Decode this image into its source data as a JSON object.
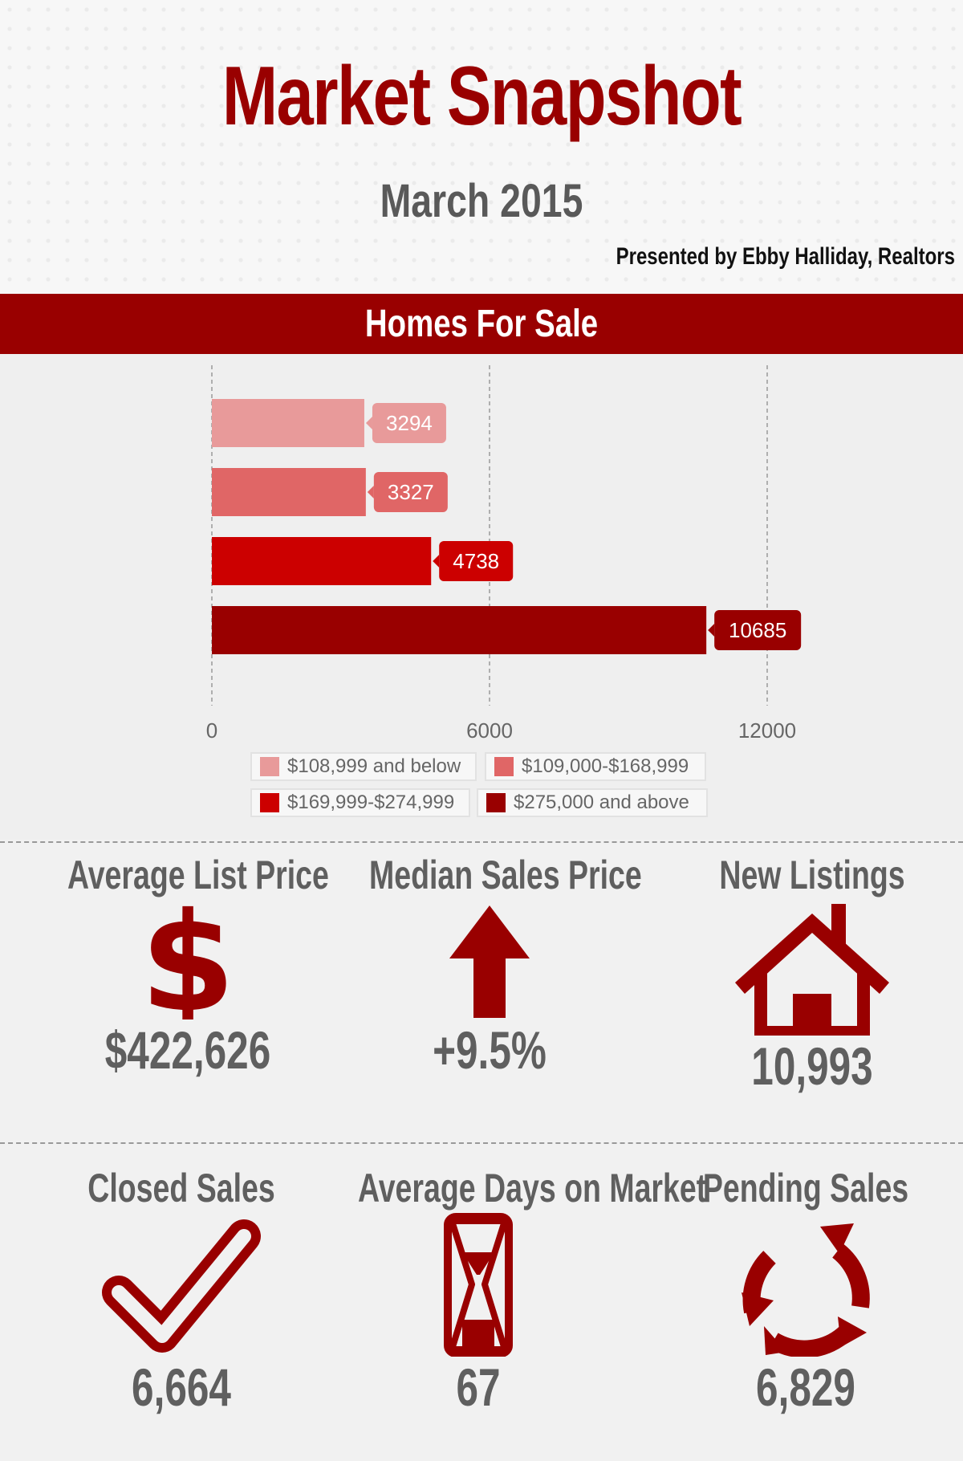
{
  "header": {
    "title": "Market Snapshot",
    "subtitle": "March 2015",
    "presented_by": "Presented by Ebby Halliday, Realtors"
  },
  "colors": {
    "brand_red": "#990000",
    "text_gray": "#5f5f5f"
  },
  "homes_for_sale": {
    "title": "Homes For Sale"
  },
  "chart_data": {
    "type": "bar",
    "orientation": "horizontal",
    "title": "Homes For Sale",
    "xlim": [
      0,
      12000
    ],
    "xticks": [
      0,
      6000,
      12000
    ],
    "grid": true,
    "legend_position": "bottom",
    "series": [
      {
        "name": "$108,999 and below",
        "value": 3294,
        "color": "#e89a9a"
      },
      {
        "name": "$109,000-$168,999",
        "value": 3327,
        "color": "#e06666"
      },
      {
        "name": "$169,999-$274,999",
        "value": 4738,
        "color": "#cc0000"
      },
      {
        "name": "$275,000 and above",
        "value": 10685,
        "color": "#990000"
      }
    ]
  },
  "stats": {
    "avg_list_price": {
      "label": "Average List Price",
      "value": "$422,626",
      "icon": "dollar-icon"
    },
    "median_sales_price": {
      "label": "Median Sales Price",
      "value": "+9.5%",
      "icon": "arrow-up-icon"
    },
    "new_listings": {
      "label": "New Listings",
      "value": "10,993",
      "icon": "house-icon"
    },
    "closed_sales": {
      "label": "Closed Sales",
      "value": "6,664",
      "icon": "checkmark-icon"
    },
    "avg_days_on_market": {
      "label": "Average Days on Market",
      "value": "67",
      "icon": "hourglass-icon"
    },
    "pending_sales": {
      "label": "Pending Sales",
      "value": "6,829",
      "icon": "cycle-arrows-icon"
    }
  }
}
